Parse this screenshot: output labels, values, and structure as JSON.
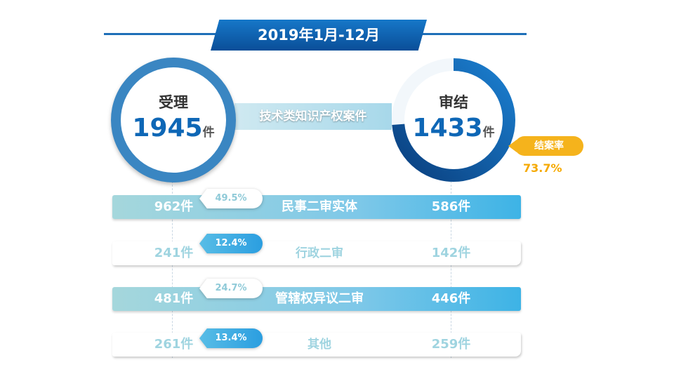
{
  "title": "2019年1月-12月",
  "accepted": {
    "label": "受理",
    "value": "1945",
    "unit": "件"
  },
  "concluded": {
    "label": "审结",
    "value": "1433",
    "unit": "件"
  },
  "category": "技术类知识产权案件",
  "closure_rate": {
    "label": "结案率",
    "value": "73.7%",
    "fraction": 0.737
  },
  "rows": [
    {
      "name": "民事二审实体",
      "accepted": "962件",
      "pct": "49.5%",
      "concluded": "586件"
    },
    {
      "name": "行政二审",
      "accepted": "241件",
      "pct": "12.4%",
      "concluded": "142件"
    },
    {
      "name": "管辖权异议二审",
      "accepted": "481件",
      "pct": "24.7%",
      "concluded": "446件"
    },
    {
      "name": "其他",
      "accepted": "261件",
      "pct": "13.4%",
      "concluded": "259件"
    }
  ],
  "colors": {
    "primary": "#0e67b6",
    "accent": "#f5b31c",
    "ring_track": "#f2f7fb"
  }
}
